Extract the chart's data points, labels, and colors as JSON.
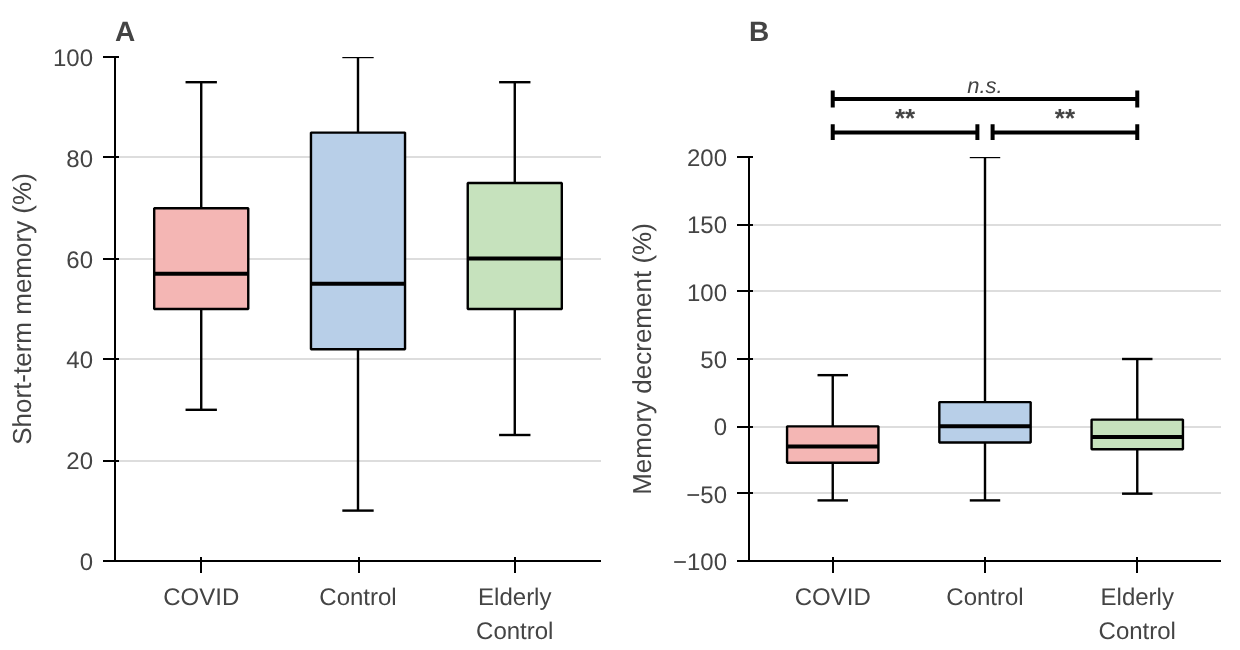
{
  "chart_data": [
    {
      "type": "box",
      "title": "A",
      "ylabel": "Short-term memory (%)",
      "categories": [
        "COVID",
        "Control",
        "Elderly Control"
      ],
      "colors": [
        "#f4b6b4",
        "#b8cfe8",
        "#c6e2bd"
      ],
      "ylim": [
        0,
        100
      ],
      "yticks": [
        0,
        20,
        40,
        60,
        80,
        100
      ],
      "grid": "y",
      "boxes": [
        {
          "low": 30,
          "q1": 50,
          "median": 57,
          "q3": 70,
          "high": 95
        },
        {
          "low": 10,
          "q1": 42,
          "median": 55,
          "q3": 85,
          "high": 100
        },
        {
          "low": 25,
          "q1": 50,
          "median": 60,
          "q3": 75,
          "high": 95
        }
      ]
    },
    {
      "type": "box",
      "title": "B",
      "ylabel": "Memory decrement (%)",
      "categories": [
        "COVID",
        "Control",
        "Elderly Control"
      ],
      "colors": [
        "#f4b6b4",
        "#b8cfe8",
        "#c6e2bd"
      ],
      "ylim": [
        -100,
        200
      ],
      "yticks": [
        -100,
        -50,
        0,
        50,
        100,
        150,
        200
      ],
      "grid": "y",
      "boxes": [
        {
          "low": -55,
          "q1": -27,
          "median": -15,
          "q3": 0,
          "high": 38
        },
        {
          "low": -55,
          "q1": -12,
          "median": 0,
          "q3": 18,
          "high": 200
        },
        {
          "low": -50,
          "q1": -17,
          "median": -8,
          "q3": 5,
          "high": 50
        }
      ],
      "annotations": [
        "n.s.",
        "**",
        "**"
      ]
    }
  ]
}
